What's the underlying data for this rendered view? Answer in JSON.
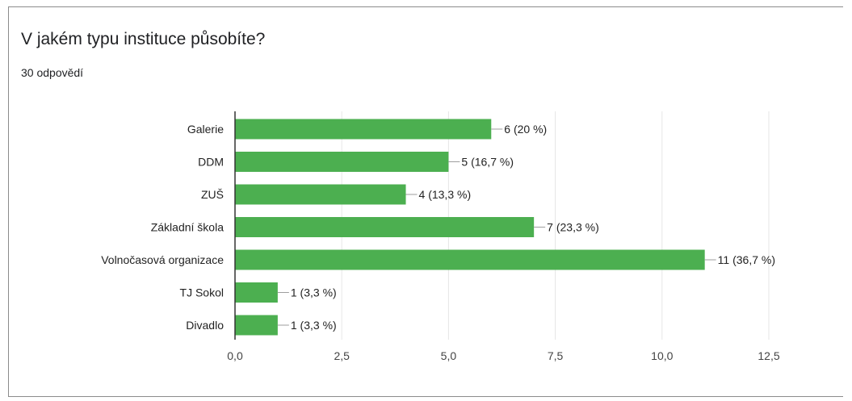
{
  "card": {
    "title": "V jakém typu instituce působíte?",
    "response_count": "30 odpovědí"
  },
  "colors": {
    "bar": "#4caf50",
    "grid": "#e6e6e6",
    "axis": "#333333",
    "text": "#222222",
    "connector": "#9e9e9e"
  },
  "chart_data": {
    "type": "bar",
    "orientation": "horizontal",
    "title": "V jakém typu instituce působíte?",
    "categories": [
      "Galerie",
      "DDM",
      "ZUŠ",
      "Základní škola",
      "Volnočasová organizace",
      "TJ Sokol",
      "Divadlo"
    ],
    "values": [
      6,
      5,
      4,
      7,
      11,
      1,
      1
    ],
    "data_labels": [
      "6 (20 %)",
      "5 (16,7 %)",
      "4 (13,3 %)",
      "7 (23,3 %)",
      "11 (36,7 %)",
      "1 (3,3 %)",
      "1 (3,3 %)"
    ],
    "xlim": [
      0,
      12.5
    ],
    "x_ticks": [
      0,
      2.5,
      5,
      7.5,
      10,
      12.5
    ],
    "x_tick_labels": [
      "0,0",
      "2,5",
      "5,0",
      "7,5",
      "10,0",
      "12,5"
    ],
    "xlabel": "",
    "ylabel": "",
    "grid": true,
    "legend": "none"
  }
}
